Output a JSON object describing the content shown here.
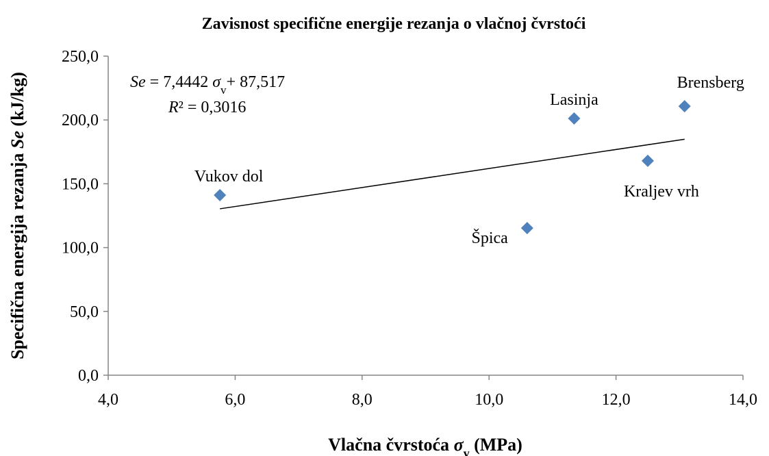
{
  "chart_data": {
    "type": "scatter",
    "title": "Zavisnost specifične energije rezanja o vlačnoj čvrstoći",
    "x_label": [
      "Vlačna čvrstoća ",
      "σ",
      "v",
      " (MPa)"
    ],
    "y_label": [
      "Specifična energija rezanja ",
      "Se",
      " (kJ/kg)"
    ],
    "x": [
      5.76,
      10.6,
      11.34,
      12.5,
      13.08
    ],
    "values": [
      141.1,
      115.3,
      201.2,
      168.0,
      210.8
    ],
    "labels": [
      "Vukov dol",
      "Špica",
      "Lasinja",
      "Kraljev vrh",
      "Brensberg"
    ],
    "color": "#4f81bd",
    "xlim": [
      4,
      14
    ],
    "xticks": [
      {
        "value": 4,
        "label": "4,0"
      },
      {
        "value": 6,
        "label": "6,0"
      },
      {
        "value": 8,
        "label": "8,0"
      },
      {
        "value": 10,
        "label": "10,0"
      },
      {
        "value": 12,
        "label": "12,0"
      },
      {
        "value": 14,
        "label": "14,0"
      }
    ],
    "ylim": [
      0,
      250
    ],
    "yticks": [
      {
        "value": 0,
        "label": "0,0"
      },
      {
        "value": 50,
        "label": "50,0"
      },
      {
        "value": 100,
        "label": "100,0"
      },
      {
        "value": 150,
        "label": "150,0"
      },
      {
        "value": 200,
        "label": "200,0"
      },
      {
        "value": 250,
        "label": "250,0"
      }
    ],
    "grid": false,
    "trendline": {
      "lhs": "Se",
      "equals": "=",
      "slope": {
        "value": 7.4442,
        "label": "7,4442"
      },
      "var": "σ",
      "var_sub": "v",
      "plus": "+",
      "intercept": {
        "value": 87.517,
        "label": "87,517"
      },
      "r2_symbol": "R",
      "r2_sup": "²",
      "r2": {
        "value": 0.3016,
        "label": "0,3016"
      }
    }
  }
}
